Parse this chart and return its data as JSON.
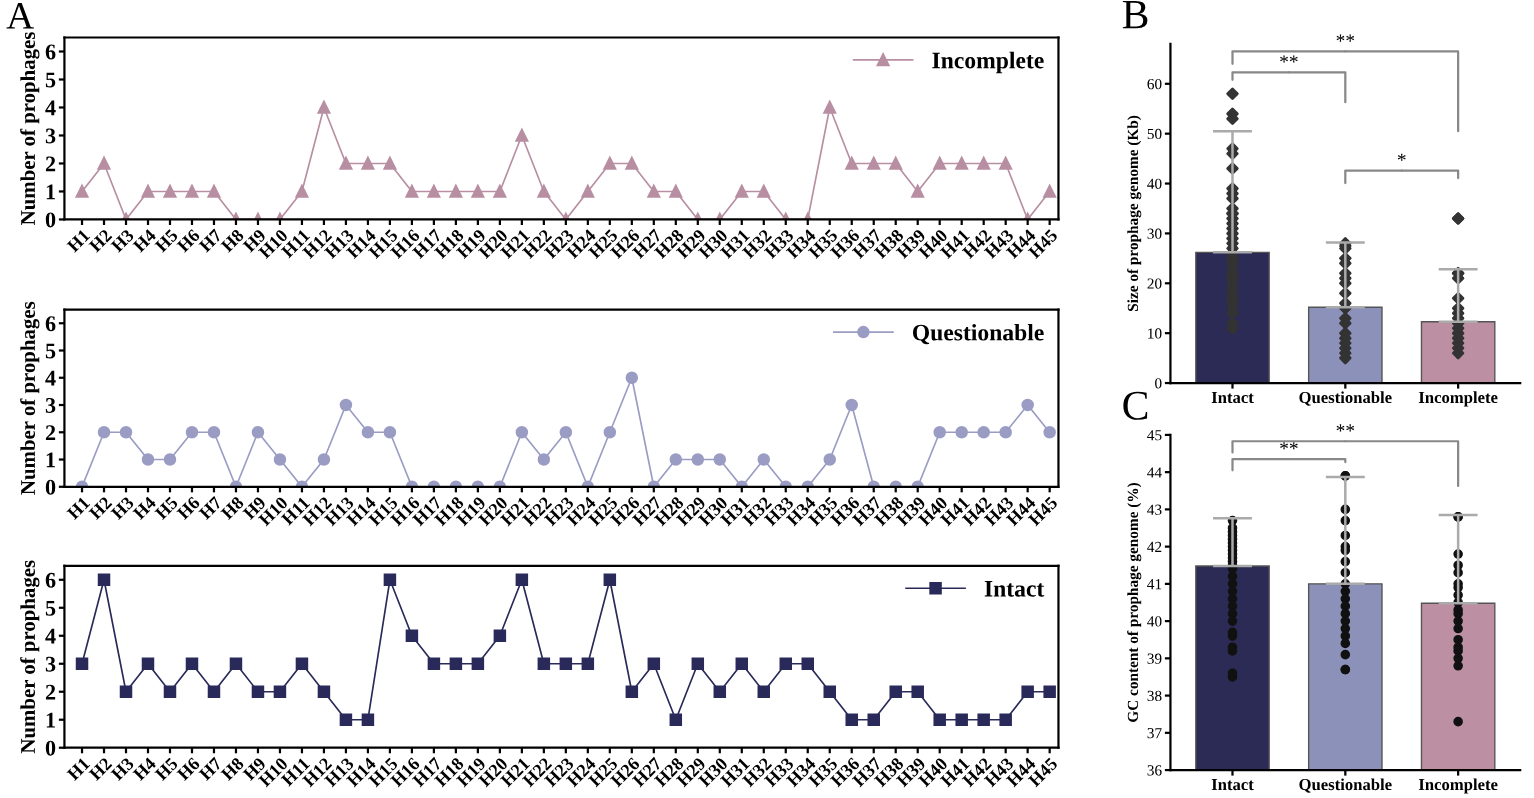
{
  "chart_data": [
    {
      "type": "line",
      "title": "A",
      "ylabel": "Number of prophages",
      "categories": [
        "H1",
        "H2",
        "H3",
        "H4",
        "H5",
        "H6",
        "H7",
        "H8",
        "H9",
        "H10",
        "H11",
        "H12",
        "H13",
        "H14",
        "H15",
        "H16",
        "H17",
        "H18",
        "H19",
        "H20",
        "H21",
        "H22",
        "H23",
        "H24",
        "H25",
        "H26",
        "H27",
        "H28",
        "H29",
        "H30",
        "H31",
        "H32",
        "H33",
        "H34",
        "H35",
        "H36",
        "H37",
        "H38",
        "H39",
        "H40",
        "H41",
        "H42",
        "H43",
        "H44",
        "H45"
      ],
      "ylim": [
        0,
        6.5
      ],
      "yticks": [
        0,
        1,
        2,
        3,
        4,
        5,
        6
      ],
      "marker": "triangle",
      "legend": "top right",
      "grid": false,
      "series": [
        {
          "name": "Incomplete",
          "color": "#b88ea2",
          "values": [
            1,
            2,
            0,
            1,
            1,
            1,
            1,
            0,
            0,
            0,
            1,
            4,
            2,
            2,
            2,
            1,
            1,
            1,
            1,
            1,
            3,
            1,
            0,
            1,
            2,
            2,
            1,
            1,
            0,
            0,
            1,
            1,
            0,
            0,
            4,
            2,
            2,
            2,
            1,
            2,
            2,
            2,
            2,
            0,
            1
          ]
        }
      ]
    },
    {
      "type": "line",
      "ylabel": "Number of prophages",
      "categories": [
        "H1",
        "H2",
        "H3",
        "H4",
        "H5",
        "H6",
        "H7",
        "H8",
        "H9",
        "H10",
        "H11",
        "H12",
        "H13",
        "H14",
        "H15",
        "H16",
        "H17",
        "H18",
        "H19",
        "H20",
        "H21",
        "H22",
        "H23",
        "H24",
        "H25",
        "H26",
        "H27",
        "H28",
        "H29",
        "H30",
        "H31",
        "H32",
        "H33",
        "H34",
        "H35",
        "H36",
        "H37",
        "H38",
        "H39",
        "H40",
        "H41",
        "H42",
        "H43",
        "H44",
        "H45"
      ],
      "ylim": [
        0,
        6.5
      ],
      "yticks": [
        0,
        1,
        2,
        3,
        4,
        5,
        6
      ],
      "marker": "circle",
      "legend": "top right",
      "grid": false,
      "series": [
        {
          "name": "Questionable",
          "color": "#9a9cc4",
          "values": [
            0,
            2,
            2,
            1,
            1,
            2,
            2,
            0,
            2,
            1,
            0,
            1,
            3,
            2,
            2,
            0,
            0,
            0,
            0,
            0,
            2,
            1,
            2,
            0,
            2,
            4,
            0,
            1,
            1,
            1,
            0,
            1,
            0,
            0,
            1,
            3,
            0,
            0,
            0,
            2,
            2,
            2,
            2,
            3,
            2
          ]
        }
      ]
    },
    {
      "type": "line",
      "ylabel": "Number of prophages",
      "categories": [
        "H1",
        "H2",
        "H3",
        "H4",
        "H5",
        "H6",
        "H7",
        "H8",
        "H9",
        "H10",
        "H11",
        "H12",
        "H13",
        "H14",
        "H15",
        "H16",
        "H17",
        "H18",
        "H19",
        "H20",
        "H21",
        "H22",
        "H23",
        "H24",
        "H25",
        "H26",
        "H27",
        "H28",
        "H29",
        "H30",
        "H31",
        "H32",
        "H33",
        "H34",
        "H35",
        "H36",
        "H37",
        "H38",
        "H39",
        "H40",
        "H41",
        "H42",
        "H43",
        "H44",
        "H45"
      ],
      "ylim": [
        0,
        6.5
      ],
      "yticks": [
        0,
        1,
        2,
        3,
        4,
        5,
        6
      ],
      "marker": "square",
      "legend": "top right",
      "grid": false,
      "series": [
        {
          "name": "Intact",
          "color": "#2a2a5a",
          "values": [
            3,
            6,
            2,
            3,
            2,
            3,
            2,
            3,
            2,
            2,
            3,
            2,
            1,
            1,
            6,
            4,
            3,
            3,
            3,
            4,
            6,
            3,
            3,
            3,
            6,
            2,
            3,
            1,
            3,
            2,
            3,
            2,
            3,
            3,
            2,
            1,
            1,
            2,
            2,
            1,
            1,
            1,
            1,
            2,
            2
          ]
        }
      ]
    },
    {
      "type": "bar",
      "title": "B",
      "ylabel": "Size of prophage genome (Kb)",
      "categories": [
        "Intact",
        "Questionable",
        "Incomplete"
      ],
      "ylim": [
        0,
        68
      ],
      "yticks": [
        0,
        10,
        20,
        30,
        40,
        50,
        60
      ],
      "grid": false,
      "annotations": [
        "**",
        "**",
        "*"
      ],
      "series": [
        {
          "colors": [
            "#2b2b55",
            "#8c91ba",
            "#bc8fa2"
          ],
          "values": [
            26.2,
            15.2,
            12.3
          ],
          "errors": [
            [
              26.2,
              50.5
            ],
            [
              15.2,
              28.2
            ],
            [
              12.3,
              22.8
            ]
          ]
        },
        {
          "type": "scatter",
          "color": "#333333",
          "marker": "diamond",
          "x": [
            "Intact",
            "Intact",
            "Intact",
            "Intact",
            "Intact",
            "Intact",
            "Intact",
            "Intact",
            "Intact",
            "Intact",
            "Intact",
            "Intact",
            "Intact",
            "Intact",
            "Intact",
            "Intact",
            "Intact",
            "Intact",
            "Intact",
            "Intact",
            "Intact",
            "Intact",
            "Intact",
            "Intact",
            "Intact",
            "Intact",
            "Intact",
            "Intact",
            "Intact",
            "Intact",
            "Intact",
            "Intact",
            "Intact",
            "Intact",
            "Questionable",
            "Questionable",
            "Questionable",
            "Questionable",
            "Questionable",
            "Questionable",
            "Questionable",
            "Questionable",
            "Questionable",
            "Questionable",
            "Questionable",
            "Questionable",
            "Questionable",
            "Questionable",
            "Questionable",
            "Questionable",
            "Questionable",
            "Questionable",
            "Questionable",
            "Incomplete",
            "Incomplete",
            "Incomplete",
            "Incomplete",
            "Incomplete",
            "Incomplete",
            "Incomplete",
            "Incomplete",
            "Incomplete",
            "Incomplete",
            "Incomplete",
            "Incomplete",
            "Incomplete",
            "Incomplete",
            "Incomplete",
            "Incomplete"
          ],
          "values": [
            58,
            54,
            53,
            47,
            46,
            43,
            39,
            38,
            37,
            35,
            34,
            34,
            33,
            32,
            31,
            30,
            29,
            28,
            27,
            26,
            25,
            24,
            23,
            22,
            21,
            20,
            19,
            18,
            17,
            16,
            15,
            14,
            12,
            11,
            28,
            27.5,
            27,
            25,
            24,
            22,
            21,
            20,
            18,
            16,
            15,
            13,
            12,
            10,
            9,
            8,
            7,
            6,
            5,
            33,
            33,
            22,
            22,
            21,
            17,
            15,
            14,
            13,
            12,
            11,
            10,
            9,
            8,
            7,
            6
          ]
        }
      ]
    },
    {
      "type": "bar",
      "title": "C",
      "ylabel": "GC content of prophage genome (%)",
      "categories": [
        "Intact",
        "Questionable",
        "Incomplete"
      ],
      "ylim": [
        36,
        45
      ],
      "yticks": [
        36,
        37,
        38,
        39,
        40,
        41,
        42,
        43,
        44,
        45
      ],
      "grid": false,
      "annotations": [
        "**",
        "**"
      ],
      "series": [
        {
          "colors": [
            "#2b2b55",
            "#8c91ba",
            "#bc8fa2"
          ],
          "values": [
            41.48,
            41.0,
            40.48
          ],
          "errors": [
            [
              41.48,
              42.76
            ],
            [
              41.0,
              43.87
            ],
            [
              40.48,
              42.85
            ]
          ]
        },
        {
          "type": "scatter",
          "color": "#111111",
          "marker": "circle",
          "x": [
            "Intact",
            "Intact",
            "Intact",
            "Intact",
            "Intact",
            "Intact",
            "Intact",
            "Intact",
            "Intact",
            "Intact",
            "Intact",
            "Intact",
            "Intact",
            "Intact",
            "Intact",
            "Intact",
            "Intact",
            "Intact",
            "Intact",
            "Intact",
            "Intact",
            "Intact",
            "Intact",
            "Intact",
            "Intact",
            "Intact",
            "Questionable",
            "Questionable",
            "Questionable",
            "Questionable",
            "Questionable",
            "Questionable",
            "Questionable",
            "Questionable",
            "Questionable",
            "Questionable",
            "Questionable",
            "Questionable",
            "Questionable",
            "Questionable",
            "Questionable",
            "Questionable",
            "Questionable",
            "Questionable",
            "Questionable",
            "Questionable",
            "Questionable",
            "Incomplete",
            "Incomplete",
            "Incomplete",
            "Incomplete",
            "Incomplete",
            "Incomplete",
            "Incomplete",
            "Incomplete",
            "Incomplete",
            "Incomplete",
            "Incomplete",
            "Incomplete",
            "Incomplete",
            "Incomplete",
            "Incomplete",
            "Incomplete",
            "Incomplete",
            "Incomplete",
            "Incomplete"
          ],
          "values": [
            42.7,
            42.5,
            42.4,
            42.3,
            42.2,
            42.1,
            42.0,
            41.9,
            41.8,
            41.7,
            41.6,
            41.5,
            41.4,
            41.2,
            41.0,
            40.8,
            40.6,
            40.4,
            40.2,
            40.0,
            39.7,
            39.6,
            39.3,
            39.2,
            38.6,
            38.5,
            43.9,
            43.9,
            43.0,
            42.7,
            42.3,
            42.0,
            41.9,
            41.6,
            41.3,
            41.0,
            40.8,
            40.6,
            40.4,
            40.2,
            40.0,
            39.8,
            39.6,
            39.4,
            39.1,
            38.7,
            38.7,
            42.8,
            42.8,
            41.8,
            41.5,
            41.3,
            41.0,
            40.9,
            40.7,
            40.5,
            40.3,
            40.2,
            40.0,
            39.8,
            39.5,
            39.3,
            39.2,
            39.0,
            38.8,
            37.3
          ]
        }
      ]
    }
  ]
}
